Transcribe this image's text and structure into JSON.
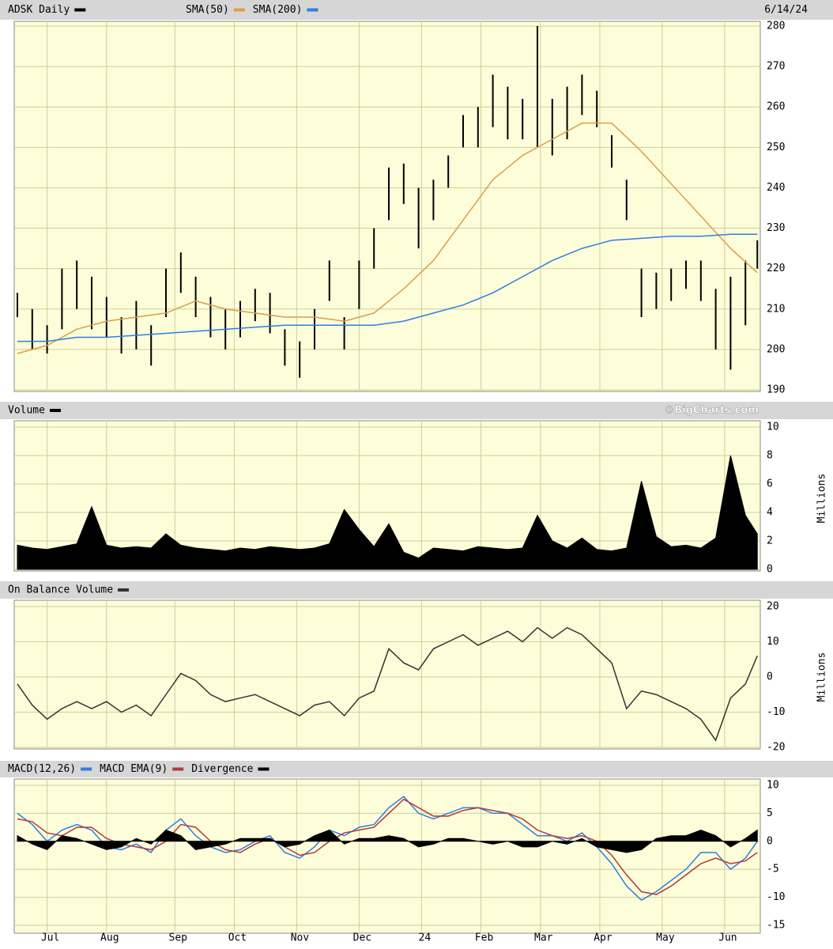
{
  "chart_data": [
    {
      "type": "range",
      "title": "ADSK Daily",
      "color": "#000000",
      "date": "6/14/24",
      "x": [
        0,
        5,
        10,
        15,
        20,
        25,
        30,
        35,
        40,
        45,
        50,
        55,
        60,
        65,
        70,
        75,
        80,
        85,
        90,
        95,
        100,
        105,
        110,
        115,
        120,
        125,
        130,
        135,
        140,
        145,
        150,
        155,
        160,
        165,
        170,
        175,
        180,
        185,
        190,
        195,
        200,
        205,
        210,
        215,
        220,
        225,
        230,
        235,
        240,
        245,
        249
      ],
      "lows": [
        208,
        200,
        199,
        205,
        210,
        205,
        203,
        199,
        200,
        196,
        208,
        214,
        208,
        203,
        200,
        203,
        207,
        204,
        196,
        193,
        200,
        212,
        200,
        210,
        220,
        232,
        236,
        225,
        232,
        240,
        250,
        250,
        255,
        252,
        252,
        250,
        248,
        252,
        258,
        255,
        245,
        232,
        208,
        210,
        212,
        215,
        212,
        200,
        195,
        206,
        220
      ],
      "highs": [
        214,
        210,
        206,
        220,
        222,
        218,
        213,
        208,
        212,
        206,
        220,
        224,
        218,
        213,
        210,
        212,
        215,
        214,
        205,
        202,
        210,
        222,
        208,
        222,
        230,
        245,
        246,
        240,
        242,
        248,
        258,
        260,
        268,
        265,
        262,
        280,
        262,
        265,
        268,
        264,
        253,
        242,
        220,
        219,
        220,
        222,
        222,
        215,
        218,
        222,
        227
      ],
      "series": [
        {
          "name": "SMA(50)",
          "color": "#d9a04a",
          "x": [
            0,
            10,
            20,
            30,
            40,
            50,
            60,
            70,
            80,
            90,
            100,
            110,
            120,
            130,
            140,
            150,
            160,
            170,
            180,
            190,
            200,
            210,
            220,
            230,
            240,
            249
          ],
          "values": [
            199,
            201,
            205,
            207,
            208,
            209,
            212,
            210,
            209,
            208,
            208,
            207,
            209,
            215,
            222,
            232,
            242,
            248,
            252,
            256,
            256,
            249,
            241,
            233,
            225,
            219
          ]
        },
        {
          "name": "SMA(200)",
          "color": "#2f7de1",
          "x": [
            0,
            10,
            20,
            30,
            40,
            50,
            60,
            70,
            80,
            90,
            100,
            110,
            120,
            130,
            140,
            150,
            160,
            170,
            180,
            190,
            200,
            210,
            220,
            230,
            240,
            249
          ],
          "values": [
            202,
            202,
            203,
            203,
            203.5,
            204,
            204.5,
            205,
            205.5,
            206,
            206,
            206,
            206,
            207,
            209,
            211,
            214,
            218,
            222,
            225,
            227,
            227.5,
            228,
            228,
            228.5,
            228.5
          ]
        }
      ],
      "ylim": [
        190,
        280
      ],
      "yticks": [
        190,
        200,
        210,
        220,
        230,
        240,
        250,
        260,
        270,
        280
      ]
    },
    {
      "type": "area",
      "title": "Volume",
      "source": "©BigCharts.com",
      "ylabel": "Millions",
      "color": "#000000",
      "x": [
        0,
        5,
        10,
        15,
        20,
        25,
        30,
        35,
        40,
        45,
        50,
        55,
        60,
        65,
        70,
        75,
        80,
        85,
        90,
        95,
        100,
        105,
        110,
        115,
        120,
        125,
        130,
        135,
        140,
        145,
        150,
        155,
        160,
        165,
        170,
        175,
        180,
        185,
        190,
        195,
        200,
        205,
        210,
        215,
        220,
        225,
        230,
        235,
        240,
        245,
        249
      ],
      "values": [
        1.7,
        1.5,
        1.4,
        1.6,
        1.8,
        4.4,
        1.7,
        1.5,
        1.6,
        1.5,
        2.5,
        1.7,
        1.5,
        1.4,
        1.3,
        1.5,
        1.4,
        1.6,
        1.5,
        1.4,
        1.5,
        1.8,
        4.2,
        2.8,
        1.6,
        3.2,
        1.2,
        0.8,
        1.5,
        1.4,
        1.3,
        1.6,
        1.5,
        1.4,
        1.5,
        3.8,
        2.0,
        1.5,
        2.2,
        1.4,
        1.3,
        1.5,
        6.2,
        2.3,
        1.6,
        1.7,
        1.5,
        2.2,
        8.0,
        3.8,
        2.5
      ],
      "ylim": [
        0,
        10
      ],
      "yticks": [
        0,
        2,
        4,
        6,
        8,
        10
      ]
    },
    {
      "type": "line",
      "title": "On Balance Volume",
      "ylabel": "Millions",
      "color": "#333333",
      "x": [
        0,
        5,
        10,
        15,
        20,
        25,
        30,
        35,
        40,
        45,
        50,
        55,
        60,
        65,
        70,
        75,
        80,
        85,
        90,
        95,
        100,
        105,
        110,
        115,
        120,
        125,
        130,
        135,
        140,
        145,
        150,
        155,
        160,
        165,
        170,
        175,
        180,
        185,
        190,
        195,
        200,
        205,
        210,
        215,
        220,
        225,
        230,
        235,
        240,
        245,
        249
      ],
      "values": [
        -2,
        -8,
        -12,
        -9,
        -7,
        -9,
        -7,
        -10,
        -8,
        -11,
        -5,
        1,
        -1,
        -5,
        -7,
        -6,
        -5,
        -7,
        -9,
        -11,
        -8,
        -7,
        -11,
        -6,
        -4,
        8,
        4,
        2,
        8,
        10,
        12,
        9,
        11,
        13,
        10,
        14,
        11,
        14,
        12,
        8,
        4,
        -9,
        -4,
        -5,
        -7,
        -9,
        -12,
        -18,
        -6,
        -2,
        6
      ],
      "ylim": [
        -20,
        20
      ],
      "yticks": [
        -20,
        -10,
        0,
        10,
        20
      ]
    },
    {
      "type": "line",
      "series": [
        {
          "name": "MACD(12,26)",
          "color": "#2f7de1",
          "style": "line",
          "x": [
            0,
            5,
            10,
            15,
            20,
            25,
            30,
            35,
            40,
            45,
            50,
            55,
            60,
            65,
            70,
            75,
            80,
            85,
            90,
            95,
            100,
            105,
            110,
            115,
            120,
            125,
            130,
            135,
            140,
            145,
            150,
            155,
            160,
            165,
            170,
            175,
            180,
            185,
            190,
            195,
            200,
            205,
            210,
            215,
            220,
            225,
            230,
            235,
            240,
            245,
            249
          ],
          "values": [
            5,
            3,
            0,
            2,
            3,
            2,
            -1,
            -1.5,
            -0.5,
            -2,
            2,
            4,
            1,
            -1,
            -2,
            -1.5,
            0,
            1,
            -2,
            -3,
            -1,
            2,
            1,
            2.5,
            3,
            6,
            8,
            5,
            4,
            5,
            6,
            6,
            5,
            5,
            3,
            1,
            1,
            0,
            1.5,
            -1,
            -4,
            -8,
            -10.5,
            -9,
            -7,
            -5,
            -2,
            -2,
            -5,
            -3,
            0
          ]
        },
        {
          "name": "MACD EMA(9)",
          "color": "#b03a3a",
          "style": "line",
          "x": [
            0,
            5,
            10,
            15,
            20,
            25,
            30,
            35,
            40,
            45,
            50,
            55,
            60,
            65,
            70,
            75,
            80,
            85,
            90,
            95,
            100,
            105,
            110,
            115,
            120,
            125,
            130,
            135,
            140,
            145,
            150,
            155,
            160,
            165,
            170,
            175,
            180,
            185,
            190,
            195,
            200,
            205,
            210,
            215,
            220,
            225,
            230,
            235,
            240,
            245,
            249
          ],
          "values": [
            4,
            3.5,
            1.5,
            1,
            2.5,
            2.5,
            0.5,
            -0.5,
            -1,
            -1.5,
            0,
            3,
            2.5,
            0,
            -1.5,
            -2,
            -0.5,
            0.5,
            -1,
            -2.5,
            -2,
            0,
            1.5,
            2,
            2.5,
            5,
            7.5,
            6,
            4.5,
            4.5,
            5.5,
            6,
            5.5,
            5,
            4,
            2,
            1,
            0.5,
            1,
            0,
            -2.5,
            -6,
            -9,
            -9.5,
            -8,
            -6,
            -4,
            -3,
            -4,
            -3.5,
            -2
          ]
        },
        {
          "name": "Divergence",
          "color": "#000000",
          "style": "area",
          "x": [
            0,
            5,
            10,
            15,
            20,
            25,
            30,
            35,
            40,
            45,
            50,
            55,
            60,
            65,
            70,
            75,
            80,
            85,
            90,
            95,
            100,
            105,
            110,
            115,
            120,
            125,
            130,
            135,
            140,
            145,
            150,
            155,
            160,
            165,
            170,
            175,
            180,
            185,
            190,
            195,
            200,
            205,
            210,
            215,
            220,
            225,
            230,
            235,
            240,
            245,
            249
          ],
          "values": [
            1,
            -0.5,
            -1.5,
            1,
            0.5,
            -0.5,
            -1.5,
            -1,
            0.5,
            -0.5,
            2,
            1,
            -1.5,
            -1,
            -0.5,
            0.5,
            0.5,
            0.5,
            -1,
            -0.5,
            1,
            2,
            -0.5,
            0.5,
            0.5,
            1,
            0.5,
            -1,
            -0.5,
            0.5,
            0.5,
            0,
            -0.5,
            0,
            -1,
            -1,
            0,
            -0.5,
            0.5,
            -1,
            -1.5,
            -2,
            -1.5,
            0.5,
            1,
            1,
            2,
            1,
            -1,
            0.5,
            2
          ]
        }
      ],
      "ylim": [
        -15,
        10
      ],
      "yticks": [
        -15,
        -10,
        -5,
        0,
        5,
        10
      ],
      "xlim": [
        0,
        250
      ],
      "xticks": [
        {
          "value": 10,
          "label": "Jul"
        },
        {
          "value": 30,
          "label": "Aug"
        },
        {
          "value": 53,
          "label": "Sep"
        },
        {
          "value": 73,
          "label": "Oct"
        },
        {
          "value": 94,
          "label": "Nov"
        },
        {
          "value": 115,
          "label": "Dec"
        },
        {
          "value": 136,
          "label": "24"
        },
        {
          "value": 156,
          "label": "Feb"
        },
        {
          "value": 176,
          "label": "Mar"
        },
        {
          "value": 196,
          "label": "Apr"
        },
        {
          "value": 217,
          "label": "May"
        },
        {
          "value": 238,
          "label": "Jun"
        }
      ]
    }
  ]
}
